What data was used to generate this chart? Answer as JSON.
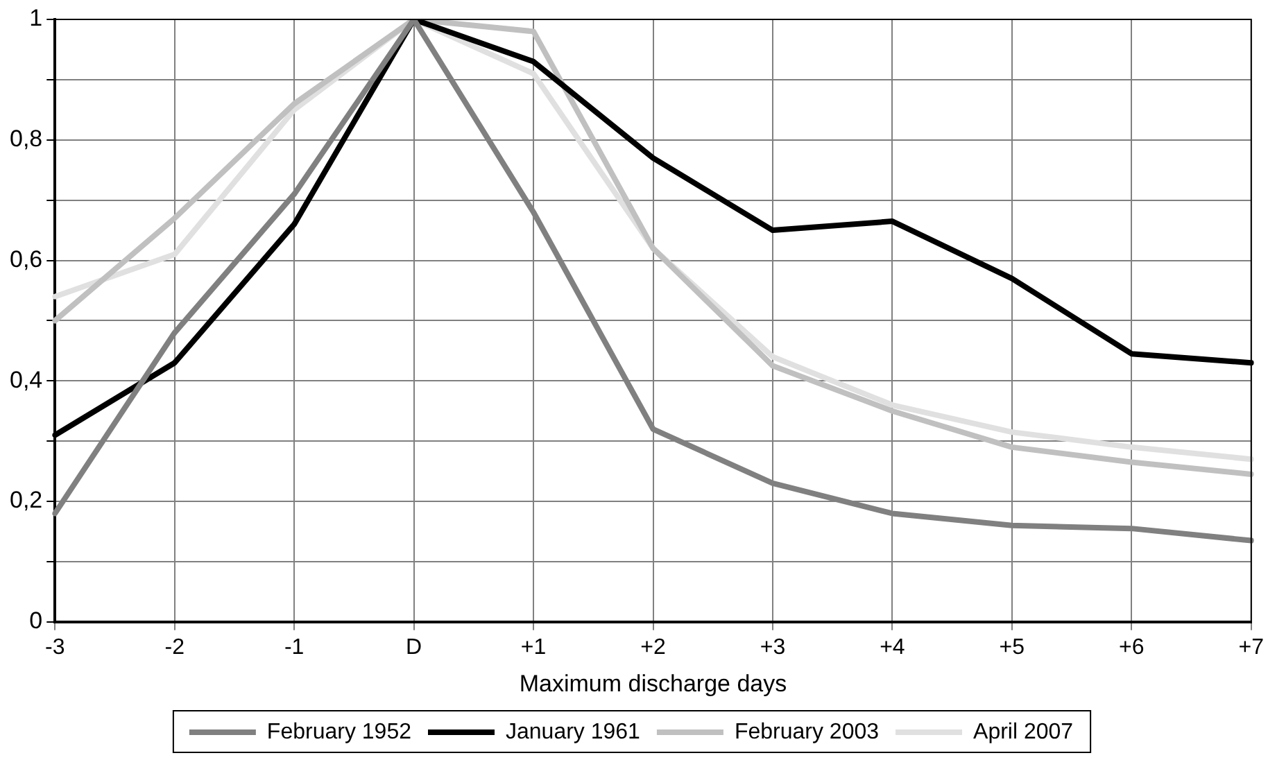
{
  "chart_data": {
    "type": "line",
    "xlabel": "Maximum discharge days",
    "categories": [
      "-3",
      "-2",
      "-1",
      "D",
      "+1",
      "+2",
      "+3",
      "+4",
      "+5",
      "+6",
      "+7"
    ],
    "series": [
      {
        "name": "February 1952",
        "color": "#808080",
        "values": [
          0.18,
          0.48,
          0.71,
          1,
          0.68,
          0.32,
          0.23,
          0.18,
          0.16,
          0.155,
          0.135
        ]
      },
      {
        "name": "January 1961",
        "color": "#000000",
        "values": [
          0.31,
          0.43,
          0.66,
          1,
          0.93,
          0.77,
          0.65,
          0.665,
          0.57,
          0.445,
          0.43
        ]
      },
      {
        "name": "February 2003",
        "color": "#c0c0c0",
        "values": [
          0.5,
          0.67,
          0.86,
          1,
          0.98,
          0.62,
          0.425,
          0.35,
          0.29,
          0.265,
          0.245
        ]
      },
      {
        "name": "April 2007",
        "color": "#e0e0e0",
        "values": [
          0.54,
          0.61,
          0.85,
          1,
          0.91,
          0.62,
          0.44,
          0.36,
          0.315,
          0.29,
          0.27
        ]
      }
    ],
    "ylim": [
      0,
      1
    ],
    "yticks": [
      0,
      {
        "value": 0.1,
        "label": null
      },
      {
        "value": 0.2,
        "label": "0,2"
      },
      {
        "value": 0.3,
        "label": null
      },
      {
        "value": 0.4,
        "label": "0,4"
      },
      {
        "value": 0.5,
        "label": null
      },
      {
        "value": 0.6,
        "label": "0,6"
      },
      {
        "value": 0.7,
        "label": null
      },
      {
        "value": 0.8,
        "label": "0,8"
      },
      {
        "value": 0.9,
        "label": null
      },
      1
    ],
    "grid": true,
    "legend": "bottom",
    "marker": "none",
    "line_style": "solid"
  }
}
